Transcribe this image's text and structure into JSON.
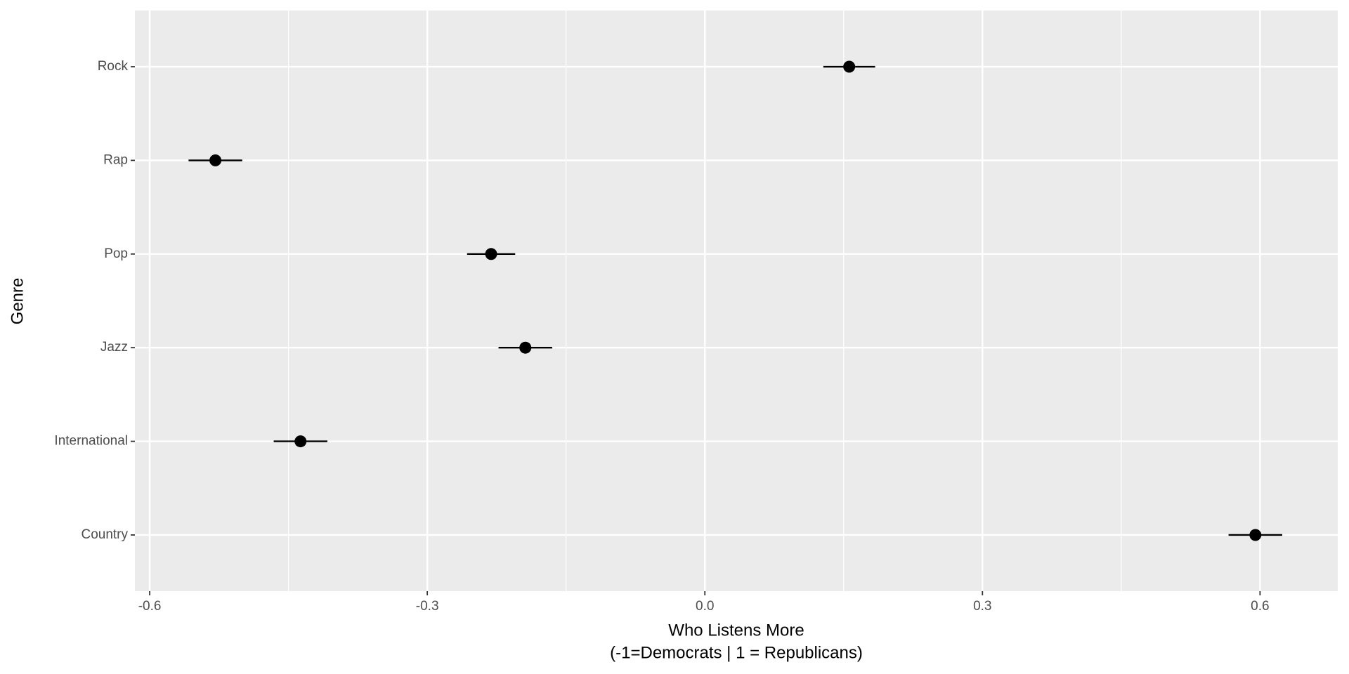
{
  "chart_data": {
    "type": "dot_errorbar",
    "xlabel": [
      "Who Listens More",
      "(-1=Democrats | 1 = Republicans)"
    ],
    "ylabel": "Genre",
    "categories": [
      "Country",
      "International",
      "Jazz",
      "Pop",
      "Rap",
      "Rock"
    ],
    "values": [
      0.595,
      -0.437,
      -0.194,
      -0.231,
      -0.529,
      0.156
    ],
    "errors": [
      0.029,
      0.029,
      0.029,
      0.026,
      0.029,
      0.028
    ],
    "color": "#000000",
    "xlim": [
      -0.616,
      0.684
    ],
    "xticks": [
      -0.6,
      -0.3,
      {
        "value": 0,
        "label": "0.0"
      },
      0.3,
      0.6
    ],
    "minor_xticks": [
      -0.45,
      -0.15,
      0.15,
      0.45
    ],
    "grid": true
  }
}
